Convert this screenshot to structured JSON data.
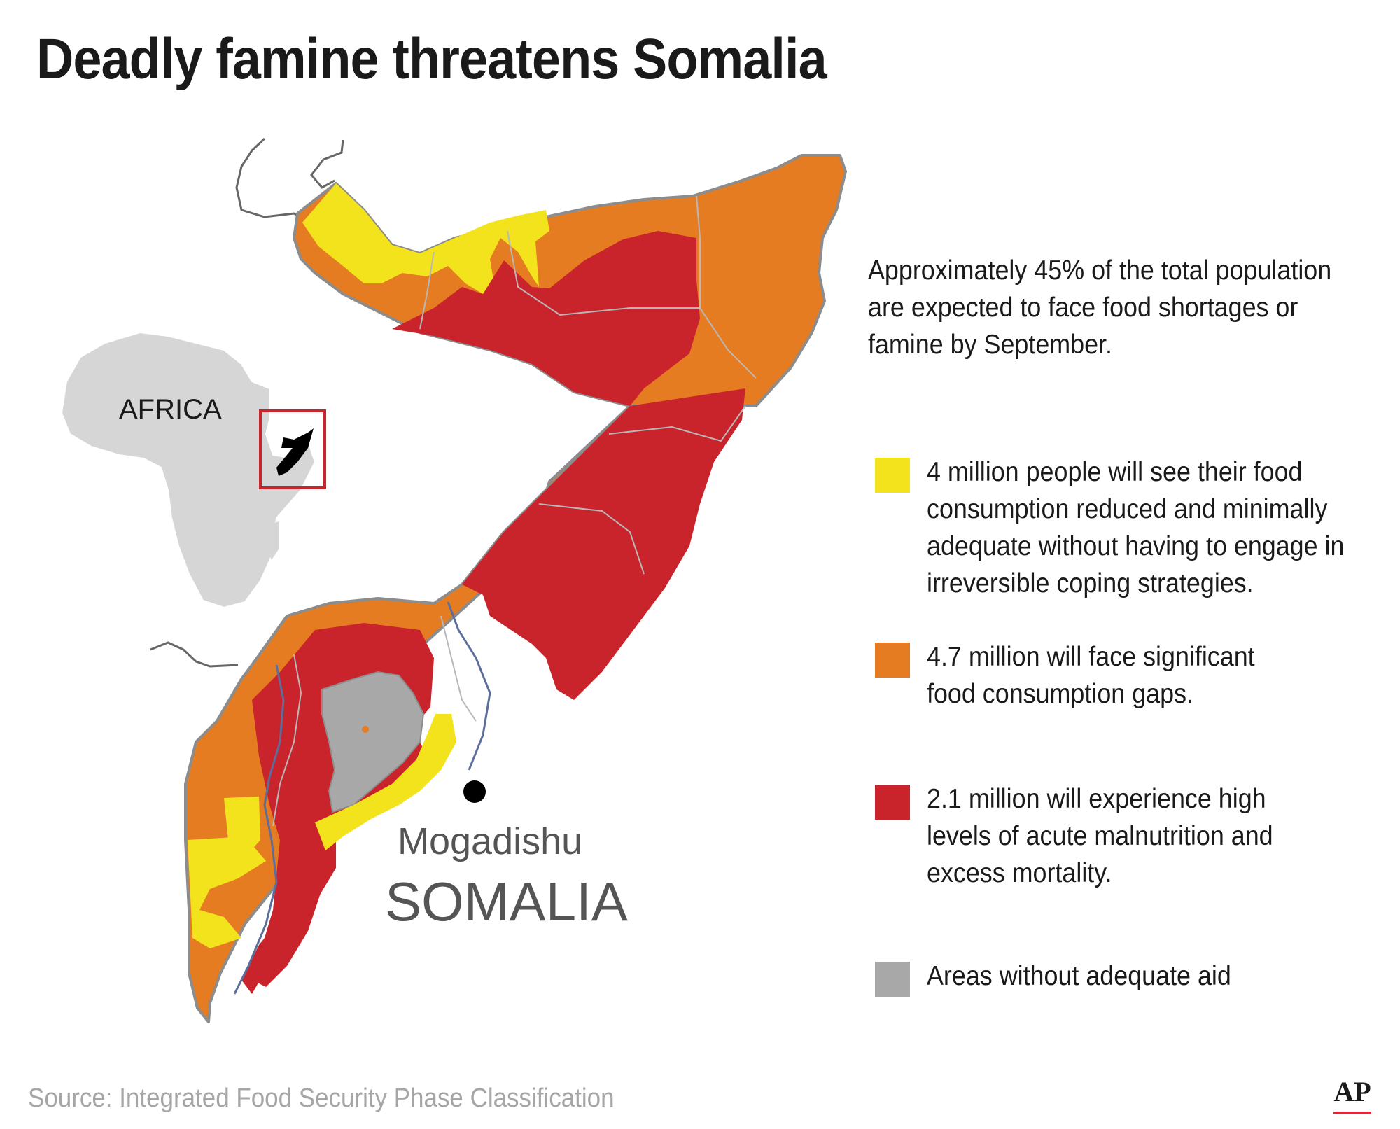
{
  "title": "Deadly famine threatens Somalia",
  "inset_label": "AFRICA",
  "city_label": "Mogadishu",
  "country_label": "SOMALIA",
  "intro_text": "Approximately 45% of the total population are expected to face food shortages or famine by September.",
  "legend": [
    {
      "color": "#f2e31d",
      "text": "4 million people will see their food consumption reduced and minimally adequate without having to engage in irreversible coping strategies."
    },
    {
      "color": "#e57c22",
      "text": "4.7 million will face significant food consumption gaps."
    },
    {
      "color": "#c9232b",
      "text": "2.1 million will experience high levels of acute malnutrition and excess mortality."
    },
    {
      "color": "#a8a8a8",
      "text": "Areas without adequate aid"
    }
  ],
  "source": "Source: Integrated Food Security Phase Classification",
  "logo": "AP",
  "colors": {
    "phase_stressed": "#f2e31d",
    "phase_crisis": "#e57c22",
    "phase_emergency": "#c9232b",
    "no_aid": "#a8a8a8",
    "africa_land": "#d6d6d6",
    "inset_frame": "#c9232b",
    "border": "#8c8c8c"
  }
}
